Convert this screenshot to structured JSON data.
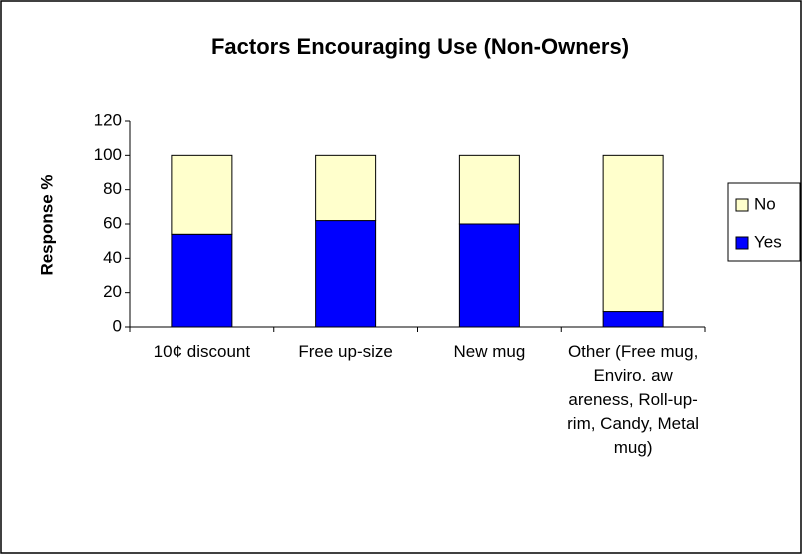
{
  "chart_data": {
    "type": "stacked_bar",
    "title": "Factors Encouraging Use (Non-Owners)",
    "y_label": "Response %",
    "categories": [
      "10¢ discount",
      "Free up-size",
      "New mug",
      "Other (Free mug, Enviro. aw areness, Roll-up-rim, Candy, Metal mug)"
    ],
    "series": [
      {
        "name": "Yes",
        "color": "#0000ff",
        "values": [
          54,
          62,
          60,
          9
        ]
      },
      {
        "name": "No",
        "color": "#ffffcc",
        "values": [
          46,
          38,
          40,
          91
        ]
      }
    ],
    "ylim": [
      0,
      120
    ],
    "yticks": [
      0,
      20,
      40,
      60,
      80,
      100,
      120
    ],
    "grid": false,
    "legend": "right"
  }
}
